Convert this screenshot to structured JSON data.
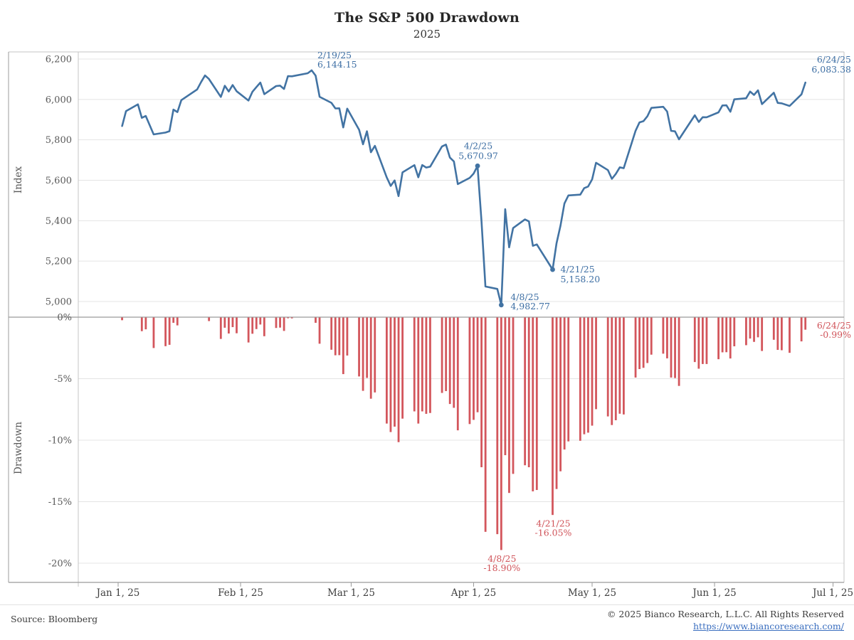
{
  "title": "The S&P 500 Drawdown",
  "subtitle": "2025",
  "footer": {
    "source": "Source: Bloomberg",
    "copyright": "© 2025 Bianco Research, L.L.C. All Rights Reserved",
    "link_text": "https://www.biancoresearch.com/",
    "link_href": "https://www.biancoresearch.com/"
  },
  "colors": {
    "line": "#4273A3",
    "blue_text": "#3E6FA4",
    "bar": "#D3565C",
    "red_text": "#D0545A",
    "gridline": "#e4e4e4",
    "spine": "#c6c6c6",
    "frame": "#9b9b9b",
    "tick_label": "#595959",
    "x_label": "#404040"
  },
  "chart_data": {
    "type": "line",
    "title": "The S&P 500 Drawdown",
    "subtitle": "2025",
    "panels": [
      {
        "name": "index",
        "ylabel": "Index",
        "ylim": [
          5000,
          6200
        ],
        "yticks": [
          6200,
          6000,
          5800,
          5600,
          5400,
          5200,
          5000
        ],
        "ytick_labels": [
          "6,200",
          "6,000",
          "5,800",
          "5,600",
          "5,400",
          "5,200",
          "5,000"
        ]
      },
      {
        "name": "drawdown",
        "type": "bar",
        "ylabel": "Drawdown",
        "ylim": [
          -20,
          0
        ],
        "yticks": [
          0,
          -5,
          -10,
          -15,
          -20
        ],
        "ytick_labels": [
          "0%",
          "-5%",
          "-10%",
          "-15%",
          "-20%"
        ]
      }
    ],
    "x_tick_dates": [
      "1/1",
      "2/1",
      "3/1",
      "4/1",
      "5/1",
      "6/1",
      "7/1"
    ],
    "x_tick_labels": [
      "Jan 1, 25",
      "Feb 1, 25",
      "Mar 1, 25",
      "Apr 1, 25",
      "May 1, 25",
      "Jun 1, 25",
      "Jul 1, 25"
    ],
    "dates": [
      "1/2",
      "1/3",
      "1/6",
      "1/7",
      "1/8",
      "1/10",
      "1/13",
      "1/14",
      "1/15",
      "1/16",
      "1/17",
      "1/21",
      "1/22",
      "1/23",
      "1/24",
      "1/27",
      "1/28",
      "1/29",
      "1/30",
      "1/31",
      "2/3",
      "2/4",
      "2/5",
      "2/6",
      "2/7",
      "2/10",
      "2/11",
      "2/12",
      "2/13",
      "2/14",
      "2/18",
      "2/19",
      "2/20",
      "2/21",
      "2/24",
      "2/25",
      "2/26",
      "2/27",
      "2/28",
      "3/3",
      "3/4",
      "3/5",
      "3/6",
      "3/7",
      "3/10",
      "3/11",
      "3/12",
      "3/13",
      "3/14",
      "3/17",
      "3/18",
      "3/19",
      "3/20",
      "3/21",
      "3/24",
      "3/25",
      "3/26",
      "3/27",
      "3/28",
      "3/31",
      "4/1",
      "4/2",
      "4/3",
      "4/4",
      "4/7",
      "4/8",
      "4/9",
      "4/10",
      "4/11",
      "4/14",
      "4/15",
      "4/16",
      "4/17",
      "4/21",
      "4/22",
      "4/23",
      "4/24",
      "4/25",
      "4/28",
      "4/29",
      "4/30",
      "5/1",
      "5/2",
      "5/5",
      "5/6",
      "5/7",
      "5/8",
      "5/9",
      "5/12",
      "5/13",
      "5/14",
      "5/15",
      "5/16",
      "5/19",
      "5/20",
      "5/21",
      "5/22",
      "5/23",
      "5/27",
      "5/28",
      "5/29",
      "5/30",
      "6/2",
      "6/3",
      "6/4",
      "6/5",
      "6/6",
      "6/9",
      "6/10",
      "6/11",
      "6/12",
      "6/13",
      "6/16",
      "6/17",
      "6/18",
      "6/20",
      "6/23",
      "6/24"
    ],
    "index_values": [
      5868.55,
      5942.47,
      5975.38,
      5909.03,
      5918.25,
      5827.04,
      5836.22,
      5842.91,
      5949.91,
      5937.34,
      5996.66,
      6049.24,
      6086.37,
      6118.71,
      6101.24,
      6012.28,
      6067.7,
      6039.31,
      6071.17,
      6040.53,
      5994.57,
      6037.88,
      6061.48,
      6083.57,
      6025.99,
      6066.44,
      6068.5,
      6051.97,
      6115.07,
      6114.63,
      6129.58,
      6144.15,
      6117.52,
      6013.13,
      5983.25,
      5955.25,
      5956.06,
      5861.57,
      5954.5,
      5849.72,
      5778.15,
      5842.63,
      5738.52,
      5770.2,
      5614.56,
      5572.07,
      5599.3,
      5521.52,
      5638.94,
      5675.12,
      5614.66,
      5675.29,
      5662.89,
      5667.56,
      5767.57,
      5776.65,
      5712.2,
      5693.31,
      5580.94,
      5611.85,
      5633.07,
      5670.97,
      5396.52,
      5074.08,
      5062.25,
      4982.77,
      5456.9,
      5268.05,
      5363.36,
      5405.97,
      5396.63,
      5275.7,
      5282.7,
      5158.2,
      5287.76,
      5375.86,
      5484.77,
      5525.21,
      5528.75,
      5560.83,
      5569.06,
      5604.14,
      5686.67,
      5650.38,
      5606.91,
      5631.28,
      5663.94,
      5659.91,
      5844.19,
      5886.55,
      5892.58,
      5916.93,
      5958.38,
      5963.6,
      5940.46,
      5844.61,
      5842.01,
      5802.82,
      5921.54,
      5888.55,
      5912.17,
      5911.69,
      5935.94,
      5970.37,
      5970.81,
      5939.3,
      6000.36,
      6005.88,
      6038.81,
      6022.24,
      6045.26,
      5976.97,
      6033.11,
      5982.72,
      5980.87,
      5967.84,
      6025.17,
      6083.38
    ],
    "drawdown_pct": [
      -0.22,
      0,
      0,
      -1.11,
      -0.96,
      -2.48,
      -2.33,
      -2.22,
      -0.43,
      -0.64,
      0,
      0,
      0,
      0,
      -0.29,
      -1.74,
      -0.83,
      -1.3,
      -0.78,
      -1.28,
      -2.03,
      -1.32,
      -0.94,
      -0.57,
      -1.52,
      -0.85,
      -0.82,
      -1.09,
      -0.06,
      -0.07,
      0,
      0,
      -0.43,
      -2.13,
      -2.62,
      -3.07,
      -3.06,
      -4.6,
      -3.09,
      -4.79,
      -5.96,
      -4.91,
      -6.6,
      -6.09,
      -8.62,
      -9.31,
      -8.87,
      -10.13,
      -8.22,
      -7.63,
      -8.62,
      -7.63,
      -7.83,
      -7.76,
      -6.13,
      -5.98,
      -7.03,
      -7.34,
      -9.17,
      -8.66,
      -8.32,
      -7.7,
      -12.17,
      -17.42,
      -17.61,
      -18.9,
      -11.19,
      -14.26,
      -12.71,
      -12.01,
      -12.17,
      -14.13,
      -14.02,
      -16.05,
      -13.94,
      -12.5,
      -10.73,
      -10.07,
      -10.02,
      -9.49,
      -9.36,
      -8.79,
      -7.45,
      -8.04,
      -8.74,
      -8.35,
      -7.82,
      -7.88,
      -4.88,
      -4.19,
      -4.09,
      -3.7,
      -3.02,
      -2.94,
      -3.32,
      -4.88,
      -4.92,
      -5.56,
      -3.62,
      -4.16,
      -3.78,
      -3.78,
      -3.39,
      -2.83,
      -2.82,
      -3.33,
      -2.34,
      -2.25,
      -1.71,
      -1.98,
      -1.61,
      -2.72,
      -1.81,
      -2.63,
      -2.66,
      -2.87,
      -1.94,
      -0.99
    ],
    "index_annotations": [
      {
        "id": "ann-2-19",
        "date": "2/19",
        "line1": "2/19/25",
        "line2": "6,144.15",
        "value": 6144.15,
        "marker": false,
        "anchor": "start",
        "dx": 8,
        "dy1": -17,
        "dy2": -4
      },
      {
        "id": "ann-4-2",
        "date": "4/2",
        "line1": "4/2/25",
        "line2": "5,670.97",
        "value": 5670.97,
        "marker": true,
        "anchor": "middle",
        "dx": 1,
        "dy1": -24,
        "dy2": -10
      },
      {
        "id": "ann-4-8",
        "date": "4/8",
        "line1": "4/8/25",
        "line2": "4,982.77",
        "value": 4982.77,
        "marker": true,
        "anchor": "start",
        "dx": 13,
        "dy1": -7,
        "dy2": 6
      },
      {
        "id": "ann-4-21",
        "date": "4/21",
        "line1": "4/21/25",
        "line2": "5,158.20",
        "value": 5158.2,
        "marker": true,
        "anchor": "start",
        "dx": 11,
        "dy1": 4,
        "dy2": 18
      },
      {
        "id": "ann-6-24",
        "date": "6/24",
        "line1": "6/24/25",
        "line2": "6,083.38",
        "value": 6083.38,
        "marker": false,
        "anchor": "end",
        "ax": 1196,
        "dy1": -28,
        "dy2": -14
      }
    ],
    "drawdown_annotations": [
      {
        "id": "dd-4-8",
        "date": "4/8",
        "line1": "4/8/25",
        "line2": "-18.90%",
        "pct": -18.9,
        "anchor": "middle",
        "dx": 1,
        "dy1": 17,
        "dy2": 30
      },
      {
        "id": "dd-4-21",
        "date": "4/21",
        "line1": "4/21/25",
        "line2": "-16.05%",
        "pct": -16.05,
        "anchor": "middle",
        "dx": 1,
        "dy1": 17,
        "dy2": 30
      },
      {
        "id": "dd-6-24",
        "date": "6/24",
        "line1": "6/24/25",
        "line2": "-0.99%",
        "pct": -0.99,
        "anchor": "end",
        "ax": 1196,
        "dy1": -1,
        "dy2": 12
      }
    ]
  }
}
